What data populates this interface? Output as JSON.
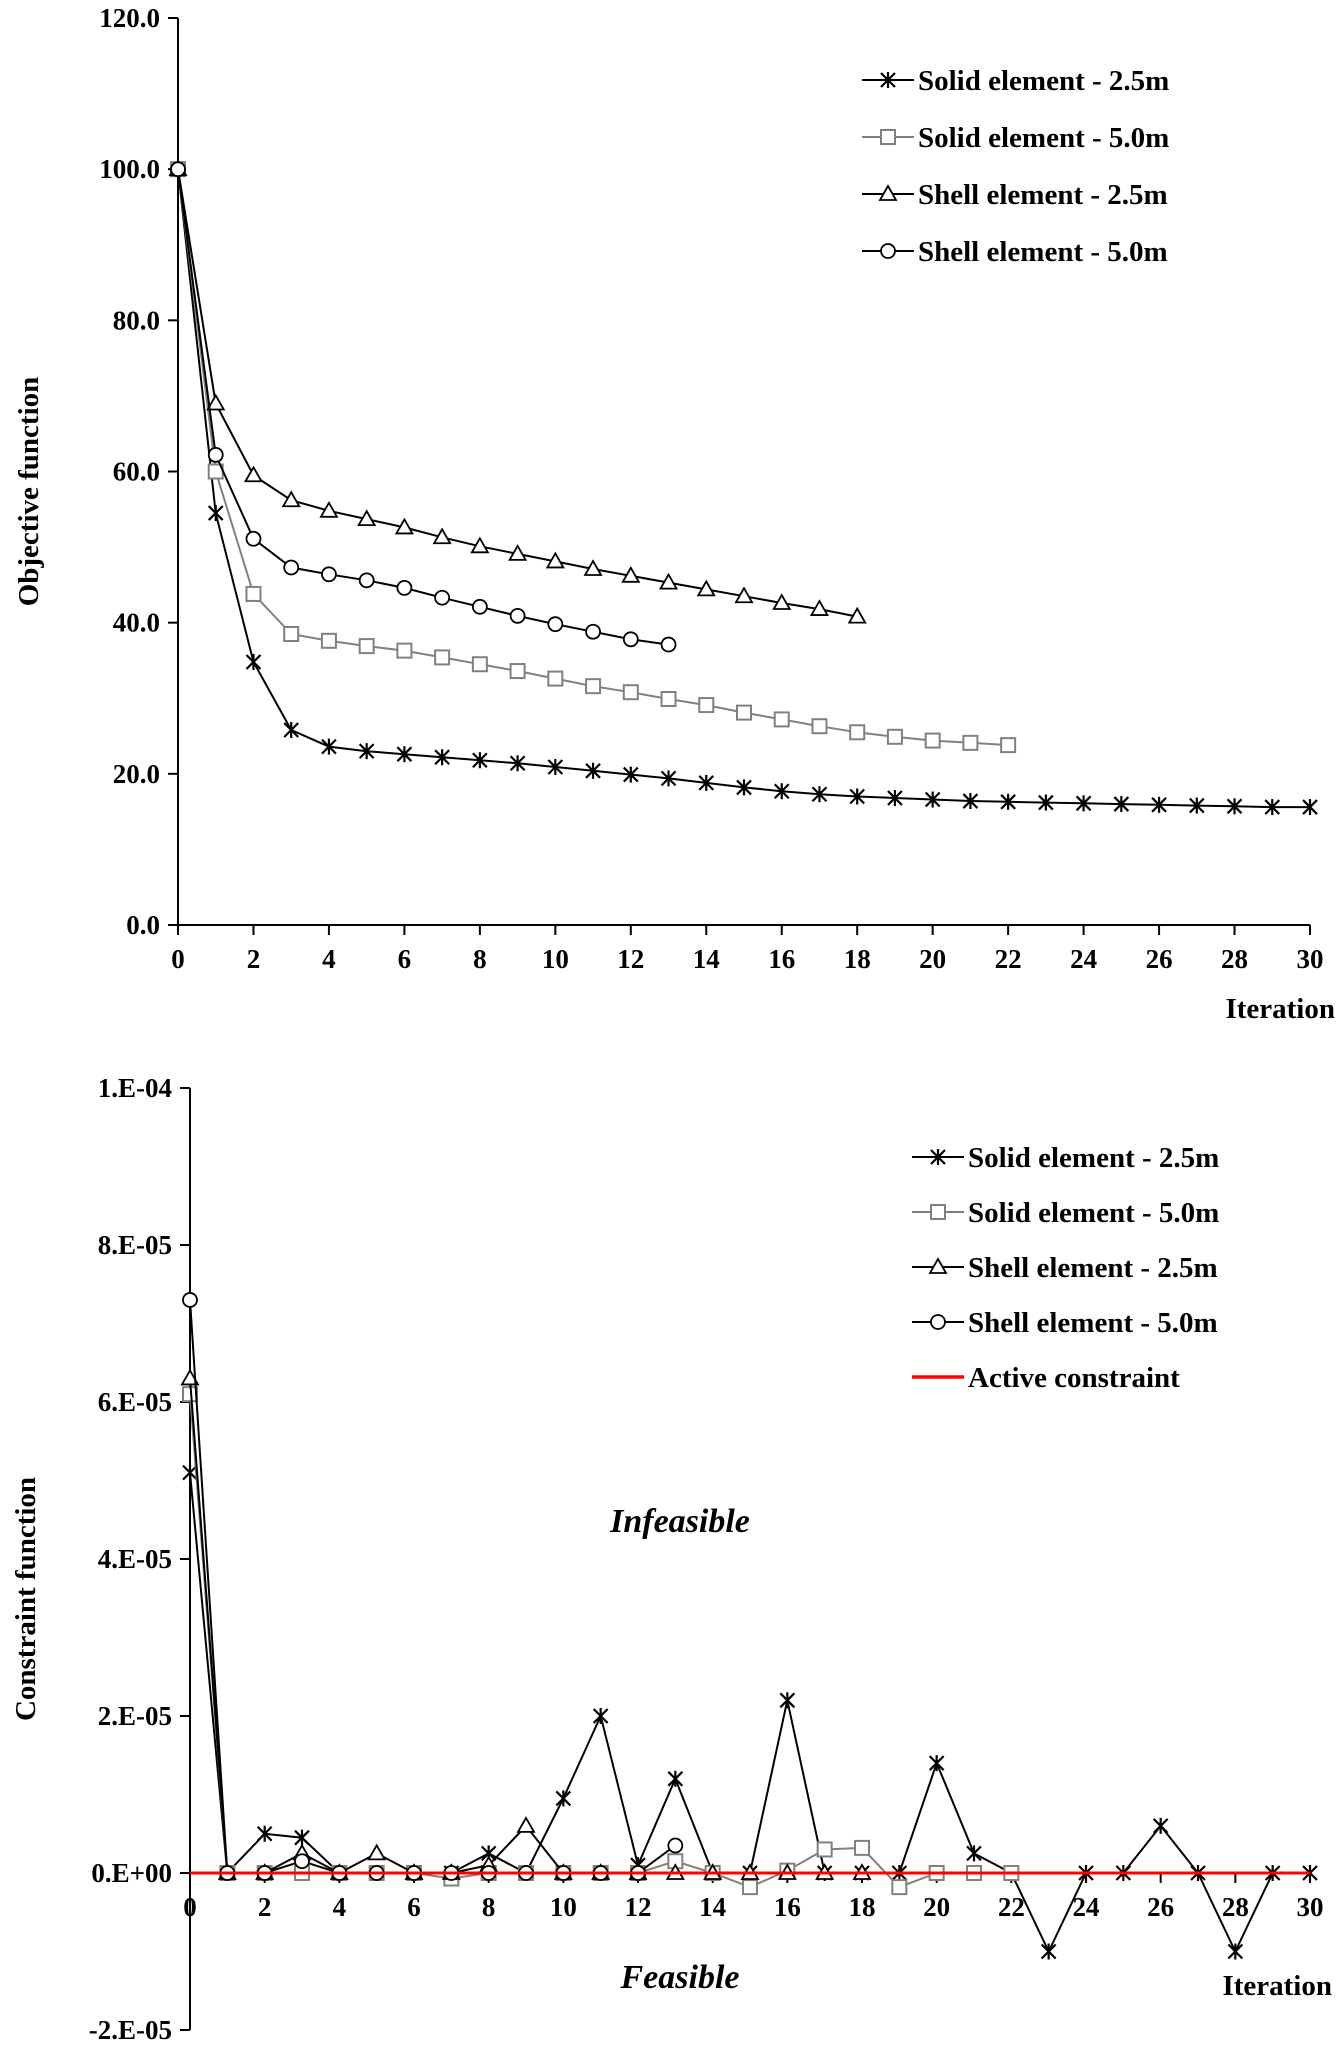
{
  "chart_data": [
    {
      "type": "line",
      "title": "",
      "xlabel": "Iteration",
      "ylabel": "Objective function",
      "xlim": [
        0,
        30
      ],
      "ylim": [
        0,
        120
      ],
      "xticks": [
        "0",
        "2",
        "4",
        "6",
        "8",
        "10",
        "12",
        "14",
        "16",
        "18",
        "20",
        "22",
        "24",
        "26",
        "28",
        "30"
      ],
      "yticks": [
        "0.0",
        "20.0",
        "40.0",
        "60.0",
        "80.0",
        "100.0",
        "120.0"
      ],
      "legend_position": "top-right",
      "series": [
        {
          "name": "Solid element - 2.5m",
          "marker": "asterisk",
          "color": "#000000",
          "x": [
            0,
            1,
            2,
            3,
            4,
            5,
            6,
            7,
            8,
            9,
            10,
            11,
            12,
            13,
            14,
            15,
            16,
            17,
            18,
            19,
            20,
            21,
            22,
            23,
            24,
            25,
            26,
            27,
            28,
            29,
            30
          ],
          "y": [
            100,
            54.5,
            34.8,
            25.8,
            23.6,
            23.0,
            22.6,
            22.2,
            21.8,
            21.4,
            20.9,
            20.4,
            19.9,
            19.4,
            18.8,
            18.2,
            17.7,
            17.3,
            17.0,
            16.8,
            16.6,
            16.4,
            16.3,
            16.2,
            16.1,
            16.0,
            15.9,
            15.8,
            15.7,
            15.6,
            15.6
          ]
        },
        {
          "name": "Solid element - 5.0m",
          "marker": "square",
          "color": "#808080",
          "x": [
            0,
            1,
            2,
            3,
            4,
            5,
            6,
            7,
            8,
            9,
            10,
            11,
            12,
            13,
            14,
            15,
            16,
            17,
            18,
            19,
            20,
            21,
            22
          ],
          "y": [
            100,
            60.0,
            43.8,
            38.5,
            37.6,
            36.9,
            36.3,
            35.4,
            34.5,
            33.6,
            32.6,
            31.6,
            30.8,
            29.9,
            29.1,
            28.1,
            27.2,
            26.3,
            25.5,
            24.9,
            24.4,
            24.1,
            23.8
          ]
        },
        {
          "name": "Shell element - 2.5m",
          "marker": "triangle",
          "color": "#000000",
          "x": [
            0,
            1,
            2,
            3,
            4,
            5,
            6,
            7,
            8,
            9,
            10,
            11,
            12,
            13,
            14,
            15,
            16,
            17,
            18
          ],
          "y": [
            100,
            69.0,
            59.5,
            56.2,
            54.8,
            53.7,
            52.6,
            51.3,
            50.1,
            49.1,
            48.1,
            47.1,
            46.2,
            45.3,
            44.4,
            43.5,
            42.6,
            41.8,
            40.8
          ]
        },
        {
          "name": "Shell element - 5.0m",
          "marker": "circle",
          "color": "#000000",
          "x": [
            0,
            1,
            2,
            3,
            4,
            5,
            6,
            7,
            8,
            9,
            10,
            11,
            12,
            13
          ],
          "y": [
            100,
            62.2,
            51.1,
            47.3,
            46.4,
            45.6,
            44.6,
            43.3,
            42.1,
            40.9,
            39.8,
            38.8,
            37.8,
            37.1
          ]
        }
      ]
    },
    {
      "type": "line",
      "title": "",
      "xlabel": "Iteration",
      "ylabel": "Constraint function",
      "xlim": [
        0,
        30
      ],
      "ylim": [
        -2e-05,
        0.0001
      ],
      "xticks": [
        "0",
        "2",
        "4",
        "6",
        "8",
        "10",
        "12",
        "14",
        "16",
        "18",
        "20",
        "22",
        "24",
        "26",
        "28",
        "30"
      ],
      "yticks": [
        "-2.E-05",
        "0.E+00",
        "2.E-05",
        "4.E-05",
        "6.E-05",
        "8.E-05",
        "1.E-04"
      ],
      "legend_position": "top-right",
      "annotations": [
        "Infeasible",
        "Feasible"
      ],
      "series": [
        {
          "name": "Solid element - 2.5m",
          "marker": "asterisk",
          "color": "#000000",
          "x": [
            0,
            1,
            2,
            3,
            4,
            5,
            6,
            7,
            8,
            9,
            10,
            11,
            12,
            13,
            14,
            15,
            16,
            17,
            18,
            19,
            20,
            21,
            22,
            23,
            24,
            25,
            26,
            27,
            28,
            29,
            30
          ],
          "y": [
            5.1e-05,
            0,
            5e-06,
            4.5e-06,
            0,
            0,
            0,
            0,
            2.5e-06,
            0,
            9.5e-06,
            2e-05,
            1e-06,
            1.2e-05,
            0,
            0,
            2.2e-05,
            0,
            0,
            0,
            1.4e-05,
            2.5e-06,
            0,
            -1e-05,
            0,
            0,
            6e-06,
            0,
            -1e-05,
            0,
            0
          ]
        },
        {
          "name": "Solid element - 5.0m",
          "marker": "square",
          "color": "#808080",
          "x": [
            0,
            1,
            2,
            3,
            4,
            5,
            6,
            7,
            8,
            9,
            10,
            11,
            12,
            13,
            14,
            15,
            16,
            17,
            18,
            19,
            20,
            21,
            22
          ],
          "y": [
            6.1e-05,
            0,
            0,
            0,
            0,
            0,
            0,
            -7e-07,
            0,
            0,
            0,
            0,
            0,
            1.5e-06,
            0,
            -1.8e-06,
            3e-07,
            3e-06,
            3.2e-06,
            -1.8e-06,
            0,
            0,
            0
          ]
        },
        {
          "name": "Shell element - 2.5m",
          "marker": "triangle",
          "color": "#000000",
          "x": [
            0,
            1,
            2,
            3,
            4,
            5,
            6,
            7,
            8,
            9,
            10,
            11,
            12,
            13,
            14,
            15,
            16,
            17,
            18
          ],
          "y": [
            6.3e-05,
            0,
            0,
            2.5e-06,
            0,
            2.5e-06,
            0,
            0,
            1e-06,
            6e-06,
            0,
            0,
            0,
            0,
            0,
            0,
            0,
            0,
            0
          ]
        },
        {
          "name": "Shell element - 5.0m",
          "marker": "circle",
          "color": "#000000",
          "x": [
            0,
            1,
            2,
            3,
            4,
            5,
            6,
            7,
            8,
            9,
            10,
            11,
            12,
            13
          ],
          "y": [
            7.3e-05,
            0,
            0,
            1.5e-06,
            0,
            0,
            0,
            0,
            0,
            0,
            0,
            0,
            0,
            3.5e-06
          ]
        },
        {
          "name": "Active constraint",
          "marker": "none",
          "color": "#ff0000",
          "x": [
            0,
            30
          ],
          "y": [
            0,
            0
          ]
        }
      ]
    }
  ]
}
